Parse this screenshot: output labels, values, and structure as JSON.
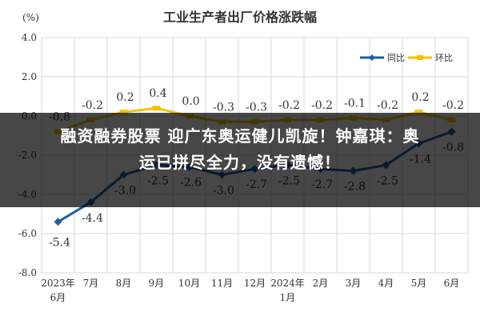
{
  "chart_data": {
    "type": "line",
    "title": "工业生产者出厂价格涨跌幅",
    "ylabel": "(%)",
    "ylim": [
      -8.0,
      4.0
    ],
    "yticks": [
      "4.0",
      "2.0",
      "0.0",
      "-2.0",
      "-4.0",
      "-6.0",
      "-8.0"
    ],
    "grid": true,
    "legend": "top-right",
    "categories": [
      "2023年\n6月",
      "7月",
      "8月",
      "9月",
      "10月",
      "11月",
      "12月",
      "2024年\n1月",
      "2月",
      "3月",
      "4月",
      "5月",
      "6月"
    ],
    "series": [
      {
        "name": "同比",
        "color": "#1f5fa8",
        "values": [
          -5.4,
          -4.4,
          -3.0,
          -2.5,
          -2.6,
          -3.0,
          -2.7,
          -2.5,
          -2.7,
          -2.8,
          -2.5,
          -1.4,
          -0.8
        ],
        "labels": [
          "-5.4",
          "-4.4",
          "-3.0",
          "-2.5",
          "-2.6",
          "-3.0",
          "-2.7",
          "-2.5",
          "-2.7",
          "-2.8",
          "-2.5",
          "-1.4",
          "-0.8"
        ]
      },
      {
        "name": "环比",
        "color": "#f2c200",
        "values": [
          -0.8,
          -0.2,
          0.2,
          0.4,
          0.0,
          -0.3,
          -0.3,
          -0.2,
          -0.2,
          -0.1,
          -0.2,
          0.2,
          -0.2
        ],
        "labels": [
          "-0.8",
          "-0.2",
          "0.2",
          "0.4",
          "0.0",
          "-0.3",
          "-0.3",
          "-0.2",
          "-0.2",
          "-0.1",
          "-0.2",
          "0.2",
          "-0.2"
        ]
      }
    ]
  },
  "overlay": {
    "headline_line1": "融资融券股票 迎广东奥运健儿凯旋！钟嘉琪：奥",
    "headline_line2": "运已拼尽全力，没有遗憾！"
  }
}
